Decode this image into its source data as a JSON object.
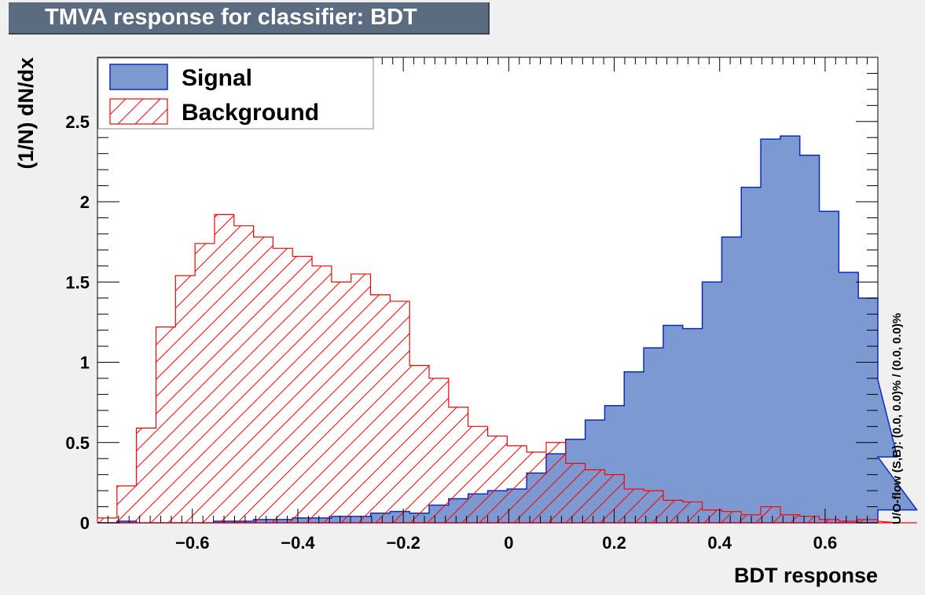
{
  "title": "TMVA response for classifier: BDT",
  "side_note": "U/O-flow (S,B): (0.0, 0.0)% / (0.0, 0.0)%",
  "colors": {
    "signal_fill": "#7d99d1",
    "signal_line": "#0a2bc2",
    "background_line": "#ff0000",
    "frame_bg": "#ffffff",
    "page_bg": "#f0f0f0"
  },
  "chart_data": {
    "type": "histogram",
    "xlabel": "BDT response",
    "ylabel": "(1/N) dN/dx",
    "xlim": [
      -0.78,
      0.7
    ],
    "ylim": [
      0,
      2.9
    ],
    "bin_width": 0.037,
    "x_ticks": [
      -0.6,
      -0.4,
      -0.2,
      0,
      0.2,
      0.4,
      0.6
    ],
    "x_tick_labels": [
      "−0.6",
      "−0.4",
      "−0.2",
      "0",
      "0.2",
      "0.4",
      "0.6"
    ],
    "y_ticks": [
      0,
      0.5,
      1,
      1.5,
      2,
      2.5
    ],
    "y_tick_labels": [
      "0",
      "0.5",
      "1",
      "1.5",
      "2",
      "2.5"
    ],
    "legend_position": "top-left",
    "series": [
      {
        "name": "Signal",
        "style": "filled",
        "bin_edges_start": -0.78,
        "values": [
          0,
          0.01,
          0,
          0,
          0,
          0,
          0.01,
          0.01,
          0.02,
          0.02,
          0.03,
          0.03,
          0.04,
          0.04,
          0.06,
          0.07,
          0.06,
          0.11,
          0.15,
          0.18,
          0.2,
          0.21,
          0.31,
          0.43,
          0.52,
          0.64,
          0.73,
          0.94,
          1.09,
          1.23,
          1.21,
          1.5,
          1.78,
          2.09,
          2.39,
          2.41,
          2.29,
          1.94,
          1.56,
          1.4,
          0.89,
          0.41,
          0.08
        ]
      },
      {
        "name": "Background",
        "style": "hatched",
        "bin_edges_start": -0.78,
        "values": [
          0.03,
          0.23,
          0.59,
          1.22,
          1.54,
          1.74,
          1.92,
          1.85,
          1.78,
          1.71,
          1.66,
          1.6,
          1.5,
          1.55,
          1.42,
          1.38,
          0.98,
          0.9,
          0.72,
          0.6,
          0.54,
          0.48,
          0.44,
          0.5,
          0.37,
          0.33,
          0.3,
          0.21,
          0.2,
          0.14,
          0.13,
          0.08,
          0.07,
          0.05,
          0.1,
          0.05,
          0.04,
          0.02,
          0.01,
          0.02,
          0.01,
          0,
          0
        ]
      }
    ]
  }
}
